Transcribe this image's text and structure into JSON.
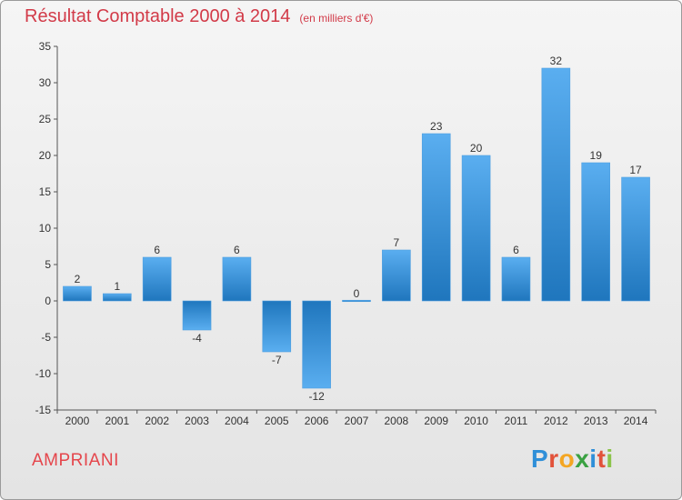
{
  "header": {
    "title": "Résultat Comptable 2000 à 2014",
    "unit": "(en milliers d'€)"
  },
  "footer": {
    "commune": "AMPRIANI",
    "brand_letters": [
      "P",
      "r",
      "o",
      "x",
      "i",
      "t",
      "i"
    ]
  },
  "colors": {
    "bar_top": "#5aaef0",
    "bar_bottom": "#1f76bd",
    "title": "#d23a48"
  },
  "chart_data": {
    "type": "bar",
    "title": "Résultat Comptable 2000 à 2014",
    "subtitle": "(en milliers d'€)",
    "xlabel": "",
    "ylabel": "",
    "categories": [
      "2000",
      "2001",
      "2002",
      "2003",
      "2004",
      "2005",
      "2006",
      "2007",
      "2008",
      "2009",
      "2010",
      "2011",
      "2012",
      "2013",
      "2014"
    ],
    "values": [
      2,
      1,
      6,
      -4,
      6,
      -7,
      -12,
      0,
      7,
      23,
      20,
      6,
      32,
      19,
      17
    ],
    "ylim": [
      -15,
      35
    ],
    "yticks": [
      35,
      30,
      25,
      20,
      15,
      10,
      5,
      0,
      -5,
      -10,
      -15
    ],
    "grid": false,
    "legend": "none"
  }
}
